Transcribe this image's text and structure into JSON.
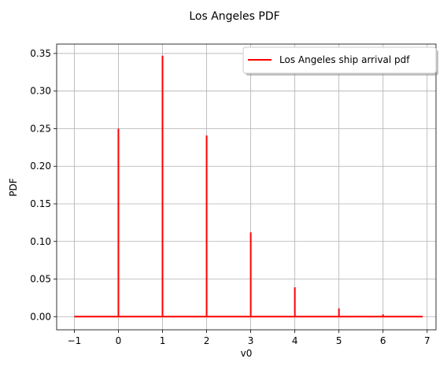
{
  "chart_data": {
    "type": "line",
    "title": "Los Angeles PDF",
    "xlabel": "v0",
    "ylabel": "PDF",
    "xlim": [
      -1.4,
      7.2
    ],
    "ylim": [
      -0.0175,
      0.3625
    ],
    "x_ticks": [
      -1,
      0,
      1,
      2,
      3,
      4,
      5,
      6,
      7
    ],
    "x_tick_labels": [
      "−1",
      "0",
      "1",
      "2",
      "3",
      "4",
      "5",
      "6",
      "7"
    ],
    "y_ticks": [
      0.0,
      0.05,
      0.1,
      0.15,
      0.2,
      0.25,
      0.3,
      0.35
    ],
    "y_tick_labels": [
      "0.00",
      "0.05",
      "0.10",
      "0.15",
      "0.20",
      "0.25",
      "0.30",
      "0.35"
    ],
    "grid": true,
    "legend_position": "top-right",
    "series": [
      {
        "name": "Los Angeles ship arrival pdf",
        "color": "#ff0000",
        "baseline_range": [
          -1,
          6.9
        ],
        "points": [
          {
            "x": 0,
            "y": 0.25
          },
          {
            "x": 1,
            "y": 0.347
          },
          {
            "x": 2,
            "y": 0.241
          },
          {
            "x": 3,
            "y": 0.112
          },
          {
            "x": 4,
            "y": 0.039
          },
          {
            "x": 5,
            "y": 0.011
          },
          {
            "x": 6,
            "y": 0.003
          }
        ]
      }
    ]
  }
}
